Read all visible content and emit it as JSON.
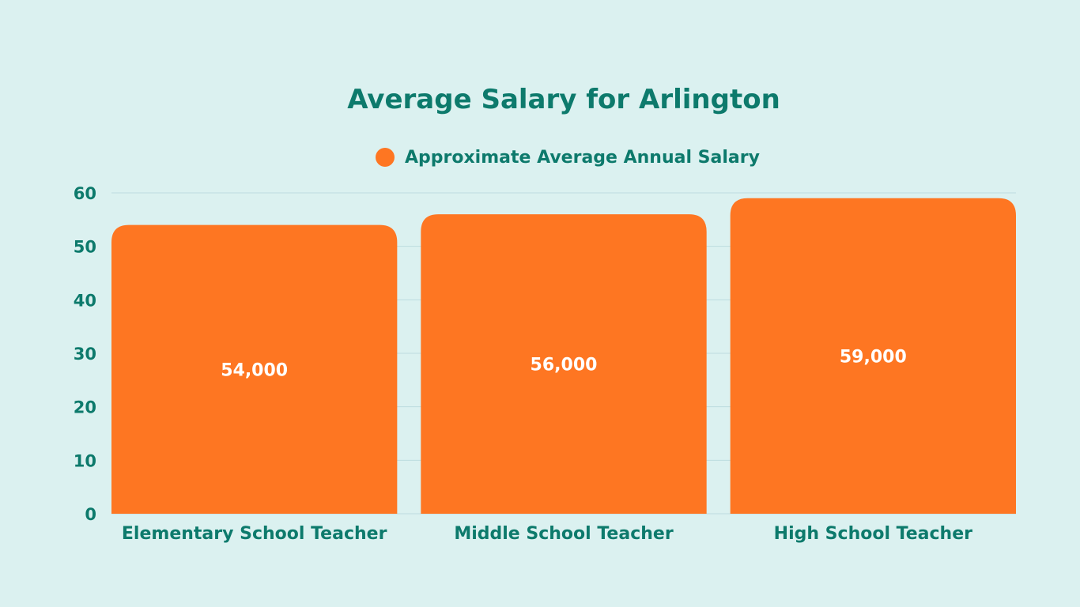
{
  "chart_data": {
    "type": "bar",
    "title": "Average Salary for Arlington",
    "xlabel": "",
    "ylabel": "",
    "ylim": [
      0,
      60
    ],
    "yticks": [
      0,
      10,
      20,
      30,
      40,
      50,
      60
    ],
    "grid": true,
    "legend_placement": "top",
    "categories": [
      "Elementary School Teacher",
      "Middle School Teacher",
      "High School Teacher"
    ],
    "series": [
      {
        "name": "Approximate Average Annual Salary",
        "values": [
          54,
          56,
          59
        ],
        "data_labels": [
          "54,000",
          "56,000",
          "59,000"
        ]
      }
    ],
    "colors": {
      "bar": "#fe7622",
      "text": "#0d7a6c",
      "background": "#dbf1f0",
      "grid": "#bcdcdf"
    }
  }
}
